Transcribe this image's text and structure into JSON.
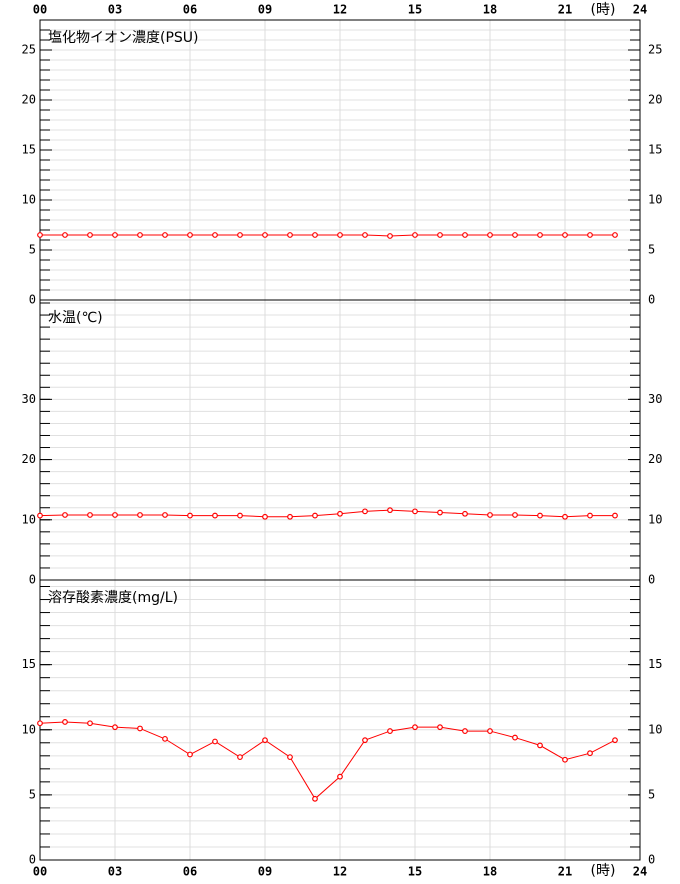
{
  "chart_data": [
    {
      "type": "line",
      "title": "塩化物イオン濃度(PSU)",
      "x_label": "(時)",
      "xlim": [
        0,
        24
      ],
      "xticks": [
        {
          "value": 0,
          "label": "00"
        },
        {
          "value": 3,
          "label": "03"
        },
        {
          "value": 6,
          "label": "06"
        },
        {
          "value": 9,
          "label": "09"
        },
        12,
        15,
        18,
        21,
        24
      ],
      "x": [
        0,
        1,
        2,
        3,
        4,
        5,
        6,
        7,
        8,
        9,
        10,
        11,
        12,
        13,
        14,
        15,
        16,
        17,
        18,
        19,
        20,
        21,
        22,
        23
      ],
      "ylim": [
        0,
        28
      ],
      "yticks": [
        0,
        5,
        10,
        15,
        20,
        25
      ],
      "minor_step": 1,
      "grid": true,
      "series": [
        {
          "color": "#ff0000",
          "values": [
            6.5,
            6.5,
            6.5,
            6.5,
            6.5,
            6.5,
            6.5,
            6.5,
            6.5,
            6.5,
            6.5,
            6.5,
            6.5,
            6.5,
            6.4,
            6.5,
            6.5,
            6.5,
            6.5,
            6.5,
            6.5,
            6.5,
            6.5,
            6.5
          ]
        }
      ]
    },
    {
      "type": "line",
      "title": "水温(℃)",
      "xlim": [
        0,
        24
      ],
      "xticks": [
        0,
        3,
        6,
        9,
        12,
        15,
        18,
        21,
        24
      ],
      "x": [
        0,
        1,
        2,
        3,
        4,
        5,
        6,
        7,
        8,
        9,
        10,
        11,
        12,
        13,
        14,
        15,
        16,
        17,
        18,
        19,
        20,
        21,
        22,
        23
      ],
      "ylim": [
        0,
        46.5
      ],
      "yticks": [
        0,
        10,
        20,
        30
      ],
      "minor_step": 2,
      "grid": true,
      "series": [
        {
          "color": "#ff0000",
          "values": [
            10.7,
            10.8,
            10.8,
            10.8,
            10.8,
            10.8,
            10.7,
            10.7,
            10.7,
            10.5,
            10.5,
            10.7,
            11.0,
            11.4,
            11.6,
            11.4,
            11.2,
            11.0,
            10.8,
            10.8,
            10.7,
            10.5,
            10.7,
            10.7
          ]
        }
      ]
    },
    {
      "type": "line",
      "title": "溶存酸素濃度(mg/L)",
      "x_label": "(時)",
      "xlim": [
        0,
        24
      ],
      "xticks": [
        {
          "value": 0,
          "label": "00"
        },
        {
          "value": 3,
          "label": "03"
        },
        {
          "value": 6,
          "label": "06"
        },
        {
          "value": 9,
          "label": "09"
        },
        12,
        15,
        18,
        21,
        24
      ],
      "x": [
        0,
        1,
        2,
        3,
        4,
        5,
        6,
        7,
        8,
        9,
        10,
        11,
        12,
        13,
        14,
        15,
        16,
        17,
        18,
        19,
        20,
        21,
        22,
        23
      ],
      "ylim": [
        0,
        21.5
      ],
      "yticks": [
        0,
        5,
        10,
        15
      ],
      "minor_step": 1,
      "grid": true,
      "series": [
        {
          "color": "#ff0000",
          "values": [
            10.5,
            10.6,
            10.5,
            10.2,
            10.1,
            9.3,
            8.1,
            9.1,
            7.9,
            9.2,
            7.9,
            4.7,
            6.4,
            9.2,
            9.9,
            10.2,
            10.2,
            9.9,
            9.9,
            9.4,
            8.8,
            7.7,
            8.2,
            9.2
          ]
        }
      ]
    }
  ]
}
